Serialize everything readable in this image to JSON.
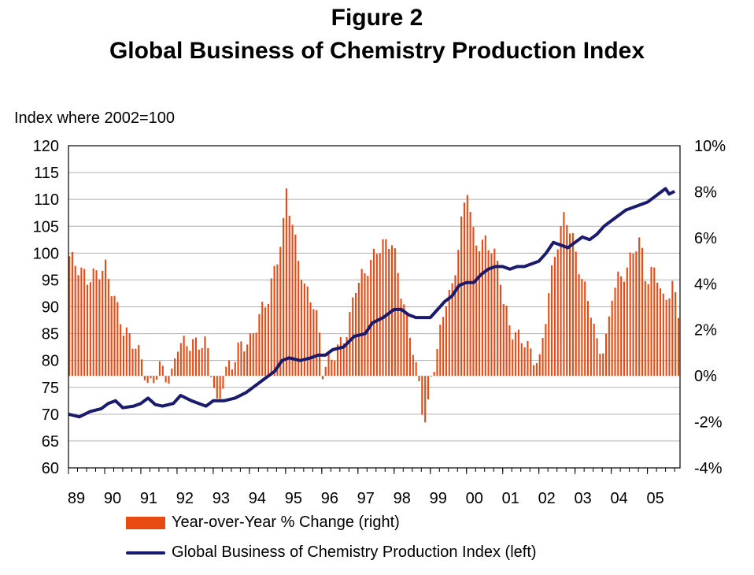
{
  "title_line1": "Figure 2",
  "title_line2": "Global Business of Chemistry Production Index",
  "left_axis_note": "Index where 2002=100",
  "chart_data": {
    "type": "bar+line",
    "title": "Figure 2 Global Business of Chemistry Production Index",
    "ylabel_left": "Index where 2002=100",
    "ylim_left": [
      60,
      120
    ],
    "yticks_left": [
      "60",
      "65",
      "70",
      "75",
      "80",
      "85",
      "90",
      "95",
      "100",
      "105",
      "110",
      "115",
      "120"
    ],
    "ylim_right": [
      -4,
      10
    ],
    "yticks_right": [
      "-4%",
      "-2%",
      "0%",
      "2%",
      "4%",
      "6%",
      "8%",
      "10%"
    ],
    "x_categories": [
      "89",
      "90",
      "91",
      "92",
      "93",
      "94",
      "95",
      "96",
      "97",
      "98",
      "99",
      "00",
      "01",
      "02",
      "03",
      "04",
      "05"
    ],
    "x_frequency": "monthly, Jan 1989 - Sep 2005",
    "series": [
      {
        "name": "Year-over-Year % Change (right)",
        "kind": "bar",
        "axis": "right",
        "color": "#e84a14",
        "points": [
          [
            1989.0,
            5.2
          ],
          [
            1989.5,
            4.2
          ],
          [
            1990.0,
            4.7
          ],
          [
            1990.5,
            2.0
          ],
          [
            1990.8,
            1.4
          ],
          [
            1991.0,
            0.7
          ],
          [
            1991.2,
            -0.6
          ],
          [
            1991.5,
            0.4
          ],
          [
            1991.8,
            -0.3
          ],
          [
            1992.0,
            1.4
          ],
          [
            1992.5,
            1.4
          ],
          [
            1992.8,
            1.4
          ],
          [
            1993.0,
            -0.5
          ],
          [
            1993.1,
            -1.5
          ],
          [
            1993.3,
            0.2
          ],
          [
            1993.5,
            0.5
          ],
          [
            1993.7,
            1.3
          ],
          [
            1994.0,
            1.5
          ],
          [
            1994.3,
            2.8
          ],
          [
            1994.5,
            3.4
          ],
          [
            1994.7,
            4.8
          ],
          [
            1994.9,
            6.2
          ],
          [
            1995.0,
            8.1
          ],
          [
            1995.2,
            6.2
          ],
          [
            1995.5,
            3.8
          ],
          [
            1995.7,
            3.4
          ],
          [
            1995.9,
            2.1
          ],
          [
            1996.0,
            0.2
          ],
          [
            1996.3,
            0.9
          ],
          [
            1996.5,
            1.4
          ],
          [
            1996.7,
            2.0
          ],
          [
            1996.9,
            3.9
          ],
          [
            1997.0,
            4.1
          ],
          [
            1997.3,
            4.8
          ],
          [
            1997.5,
            5.5
          ],
          [
            1997.7,
            5.7
          ],
          [
            1997.9,
            5.9
          ],
          [
            1998.0,
            5.2
          ],
          [
            1998.2,
            3.4
          ],
          [
            1998.5,
            1.2
          ],
          [
            1998.7,
            -0.8
          ],
          [
            1998.8,
            -2.0
          ],
          [
            1998.9,
            -1.6
          ],
          [
            1999.0,
            -0.1
          ],
          [
            1999.2,
            1.4
          ],
          [
            1999.4,
            3.3
          ],
          [
            1999.6,
            3.8
          ],
          [
            1999.8,
            6.3
          ],
          [
            2000.0,
            8.2
          ],
          [
            2000.2,
            5.7
          ],
          [
            2000.5,
            5.8
          ],
          [
            2000.7,
            5.5
          ],
          [
            2000.9,
            4.5
          ],
          [
            2001.0,
            3.2
          ],
          [
            2001.2,
            2.0
          ],
          [
            2001.4,
            1.7
          ],
          [
            2001.6,
            1.5
          ],
          [
            2001.8,
            0.8
          ],
          [
            2002.0,
            0.6
          ],
          [
            2002.2,
            3.0
          ],
          [
            2002.4,
            5.2
          ],
          [
            2002.6,
            6.4
          ],
          [
            2002.7,
            7.1
          ],
          [
            2002.9,
            6.0
          ],
          [
            2003.0,
            5.3
          ],
          [
            2003.2,
            4.0
          ],
          [
            2003.4,
            3.0
          ],
          [
            2003.6,
            1.2
          ],
          [
            2003.8,
            1.2
          ],
          [
            2003.9,
            2.2
          ],
          [
            2004.0,
            3.6
          ],
          [
            2004.2,
            4.3
          ],
          [
            2004.4,
            4.5
          ],
          [
            2004.6,
            5.6
          ],
          [
            2004.8,
            5.8
          ],
          [
            2004.9,
            4.5
          ],
          [
            2005.0,
            4.1
          ],
          [
            2005.2,
            4.8
          ],
          [
            2005.4,
            3.2
          ],
          [
            2005.6,
            3.7
          ],
          [
            2005.7,
            4.0
          ],
          [
            2005.8,
            2.8
          ]
        ]
      },
      {
        "name": "Global Business of Chemistry Production Index (left)",
        "kind": "line",
        "axis": "left",
        "color": "#1a1a6e",
        "points": [
          [
            1989.0,
            70.0
          ],
          [
            1989.3,
            69.5
          ],
          [
            1989.6,
            70.5
          ],
          [
            1989.9,
            71.0
          ],
          [
            1990.1,
            72.0
          ],
          [
            1990.3,
            72.5
          ],
          [
            1990.5,
            71.2
          ],
          [
            1990.8,
            71.5
          ],
          [
            1991.0,
            72.0
          ],
          [
            1991.2,
            73.0
          ],
          [
            1991.4,
            71.8
          ],
          [
            1991.6,
            71.5
          ],
          [
            1991.9,
            72.0
          ],
          [
            1992.1,
            73.5
          ],
          [
            1992.4,
            72.5
          ],
          [
            1992.6,
            72.0
          ],
          [
            1992.8,
            71.5
          ],
          [
            1993.0,
            72.5
          ],
          [
            1993.3,
            72.5
          ],
          [
            1993.6,
            73.0
          ],
          [
            1993.9,
            74.0
          ],
          [
            1994.1,
            75.0
          ],
          [
            1994.4,
            76.5
          ],
          [
            1994.7,
            78.0
          ],
          [
            1994.9,
            80.0
          ],
          [
            1995.1,
            80.5
          ],
          [
            1995.4,
            80.0
          ],
          [
            1995.7,
            80.5
          ],
          [
            1995.9,
            81.0
          ],
          [
            1996.1,
            81.0
          ],
          [
            1996.3,
            82.0
          ],
          [
            1996.6,
            82.5
          ],
          [
            1996.9,
            84.5
          ],
          [
            1997.2,
            85.0
          ],
          [
            1997.4,
            87.0
          ],
          [
            1997.7,
            88.0
          ],
          [
            1998.0,
            89.5
          ],
          [
            1998.2,
            89.5
          ],
          [
            1998.4,
            88.5
          ],
          [
            1998.6,
            88.0
          ],
          [
            1998.8,
            88.0
          ],
          [
            1999.0,
            88.0
          ],
          [
            1999.2,
            89.5
          ],
          [
            1999.4,
            91.0
          ],
          [
            1999.6,
            92.0
          ],
          [
            1999.8,
            94.0
          ],
          [
            2000.0,
            94.5
          ],
          [
            2000.2,
            94.5
          ],
          [
            2000.4,
            96.0
          ],
          [
            2000.6,
            97.0
          ],
          [
            2000.8,
            97.5
          ],
          [
            2001.0,
            97.5
          ],
          [
            2001.2,
            97.0
          ],
          [
            2001.4,
            97.5
          ],
          [
            2001.6,
            97.5
          ],
          [
            2001.8,
            98.0
          ],
          [
            2002.0,
            98.5
          ],
          [
            2002.2,
            100.0
          ],
          [
            2002.4,
            102.0
          ],
          [
            2002.6,
            101.5
          ],
          [
            2002.8,
            101.0
          ],
          [
            2003.0,
            102.0
          ],
          [
            2003.2,
            103.0
          ],
          [
            2003.4,
            102.5
          ],
          [
            2003.6,
            103.5
          ],
          [
            2003.8,
            105.0
          ],
          [
            2004.0,
            106.0
          ],
          [
            2004.2,
            107.0
          ],
          [
            2004.4,
            108.0
          ],
          [
            2004.6,
            108.5
          ],
          [
            2004.8,
            109.0
          ],
          [
            2005.0,
            109.5
          ],
          [
            2005.2,
            110.5
          ],
          [
            2005.4,
            111.5
          ],
          [
            2005.5,
            112.0
          ],
          [
            2005.6,
            111.0
          ],
          [
            2005.75,
            111.5
          ]
        ]
      }
    ],
    "grid": "horizontal",
    "legend_position": "bottom"
  }
}
